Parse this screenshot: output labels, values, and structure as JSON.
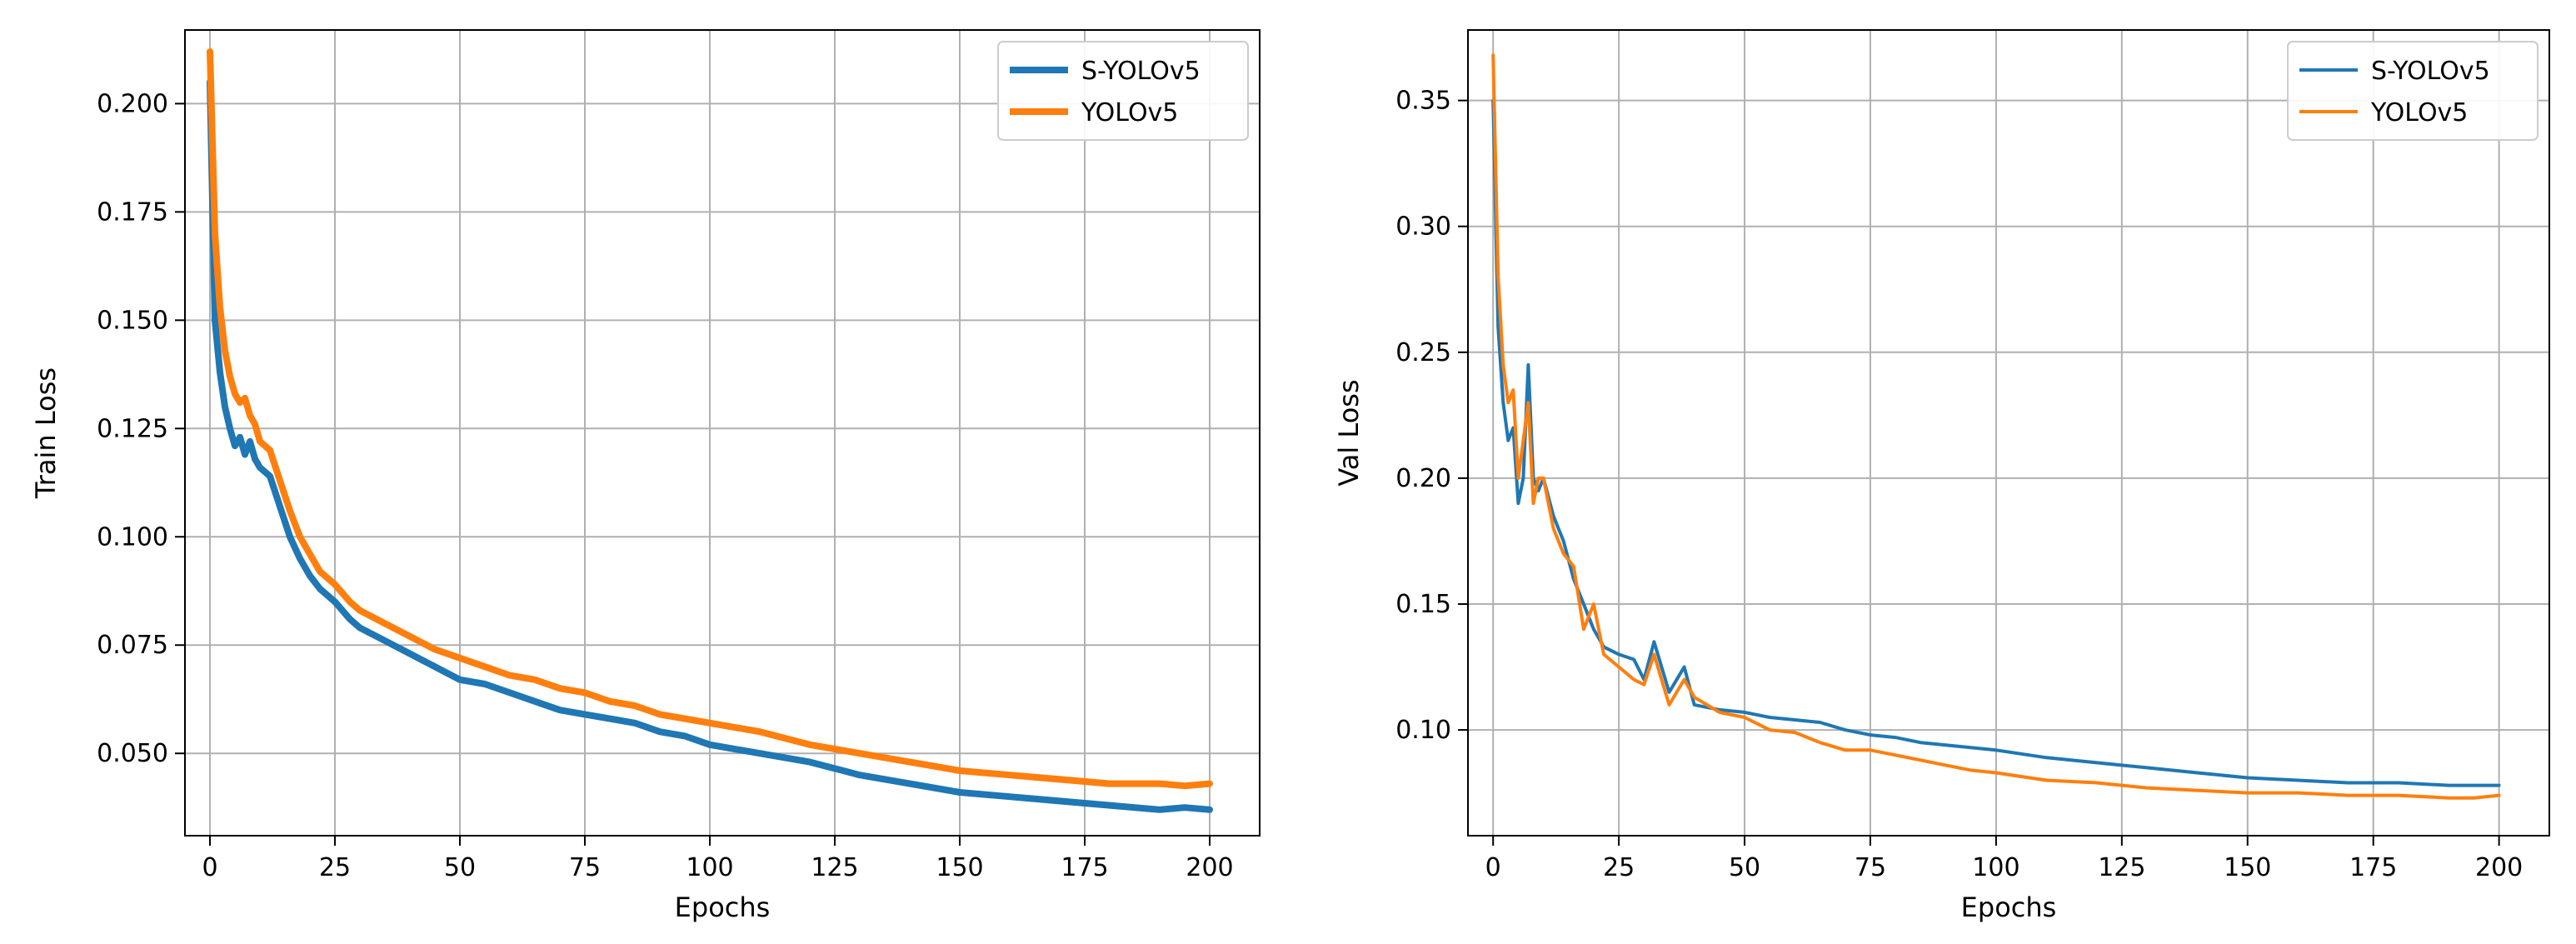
{
  "colors": {
    "s_yolov5": "#1f77b4",
    "yolov5": "#ff7f0e",
    "grid": "#b0b0b0",
    "axis": "#000000"
  },
  "chart_data": [
    {
      "type": "line",
      "title": "",
      "xlabel": "Epochs",
      "ylabel": "Train Loss",
      "xlim": [
        -5,
        210
      ],
      "ylim": [
        0.031,
        0.217
      ],
      "xticks": [
        0,
        25,
        50,
        75,
        100,
        125,
        150,
        175,
        200
      ],
      "xtick_labels": [
        "0",
        "25",
        "50",
        "75",
        "100",
        "125",
        "150",
        "175",
        "200"
      ],
      "yticks": [
        0.05,
        0.075,
        0.1,
        0.125,
        0.15,
        0.175,
        0.2
      ],
      "ytick_labels": [
        "0.050",
        "0.075",
        "0.100",
        "0.125",
        "0.150",
        "0.175",
        "0.200"
      ],
      "grid": true,
      "legend": "top-right",
      "series": [
        {
          "name": "S-YOLOv5",
          "color": "#1f77b4",
          "x": [
            0,
            1,
            2,
            3,
            4,
            5,
            6,
            7,
            8,
            9,
            10,
            12,
            14,
            16,
            18,
            20,
            22,
            25,
            28,
            30,
            35,
            40,
            45,
            50,
            55,
            60,
            65,
            70,
            75,
            80,
            85,
            90,
            95,
            100,
            110,
            120,
            130,
            140,
            150,
            160,
            170,
            180,
            190,
            195,
            200
          ],
          "y": [
            0.205,
            0.15,
            0.138,
            0.13,
            0.125,
            0.121,
            0.123,
            0.119,
            0.122,
            0.118,
            0.116,
            0.114,
            0.107,
            0.1,
            0.095,
            0.091,
            0.088,
            0.085,
            0.081,
            0.079,
            0.076,
            0.073,
            0.07,
            0.067,
            0.066,
            0.064,
            0.062,
            0.06,
            0.059,
            0.058,
            0.057,
            0.055,
            0.054,
            0.052,
            0.05,
            0.048,
            0.045,
            0.043,
            0.041,
            0.04,
            0.039,
            0.038,
            0.037,
            0.0375,
            0.037
          ]
        },
        {
          "name": "YOLOv5",
          "color": "#ff7f0e",
          "x": [
            0,
            1,
            2,
            3,
            4,
            5,
            6,
            7,
            8,
            9,
            10,
            12,
            14,
            16,
            18,
            20,
            22,
            25,
            28,
            30,
            35,
            40,
            45,
            50,
            55,
            60,
            65,
            70,
            75,
            80,
            85,
            90,
            95,
            100,
            110,
            120,
            130,
            140,
            150,
            160,
            170,
            180,
            190,
            195,
            200
          ],
          "y": [
            0.212,
            0.17,
            0.153,
            0.143,
            0.137,
            0.133,
            0.131,
            0.132,
            0.128,
            0.126,
            0.122,
            0.12,
            0.113,
            0.106,
            0.1,
            0.096,
            0.092,
            0.089,
            0.085,
            0.083,
            0.08,
            0.077,
            0.074,
            0.072,
            0.07,
            0.068,
            0.067,
            0.065,
            0.064,
            0.062,
            0.061,
            0.059,
            0.058,
            0.057,
            0.055,
            0.052,
            0.05,
            0.048,
            0.046,
            0.045,
            0.044,
            0.043,
            0.043,
            0.0425,
            0.043
          ]
        }
      ]
    },
    {
      "type": "line",
      "title": "",
      "xlabel": "Epochs",
      "ylabel": "Val Loss",
      "xlim": [
        -5,
        210
      ],
      "ylim": [
        0.058,
        0.378
      ],
      "xticks": [
        0,
        25,
        50,
        75,
        100,
        125,
        150,
        175,
        200
      ],
      "xtick_labels": [
        "0",
        "25",
        "50",
        "75",
        "100",
        "125",
        "150",
        "175",
        "200"
      ],
      "yticks": [
        0.1,
        0.15,
        0.2,
        0.25,
        0.3,
        0.35
      ],
      "ytick_labels": [
        "0.10",
        "0.15",
        "0.20",
        "0.25",
        "0.30",
        "0.35"
      ],
      "grid": true,
      "legend": "top-right",
      "series": [
        {
          "name": "S-YOLOv5",
          "color": "#1f77b4",
          "x": [
            0,
            1,
            2,
            3,
            4,
            5,
            6,
            7,
            8,
            9,
            10,
            12,
            14,
            16,
            18,
            20,
            22,
            25,
            28,
            30,
            32,
            35,
            38,
            40,
            45,
            50,
            55,
            60,
            65,
            70,
            75,
            80,
            85,
            90,
            95,
            100,
            110,
            120,
            130,
            140,
            150,
            160,
            170,
            180,
            190,
            195,
            200
          ],
          "y": [
            0.35,
            0.26,
            0.23,
            0.215,
            0.22,
            0.19,
            0.2,
            0.245,
            0.2,
            0.195,
            0.2,
            0.185,
            0.175,
            0.16,
            0.15,
            0.14,
            0.133,
            0.13,
            0.128,
            0.12,
            0.135,
            0.115,
            0.125,
            0.11,
            0.108,
            0.107,
            0.105,
            0.104,
            0.103,
            0.1,
            0.098,
            0.097,
            0.095,
            0.094,
            0.093,
            0.092,
            0.089,
            0.087,
            0.085,
            0.083,
            0.081,
            0.08,
            0.079,
            0.079,
            0.078,
            0.078,
            0.078
          ]
        },
        {
          "name": "YOLOv5",
          "color": "#ff7f0e",
          "x": [
            0,
            1,
            2,
            3,
            4,
            5,
            6,
            7,
            8,
            9,
            10,
            12,
            14,
            16,
            18,
            20,
            22,
            25,
            28,
            30,
            32,
            35,
            38,
            40,
            45,
            50,
            55,
            60,
            65,
            70,
            75,
            80,
            85,
            90,
            95,
            100,
            110,
            120,
            130,
            140,
            150,
            160,
            170,
            180,
            190,
            195,
            200
          ],
          "y": [
            0.368,
            0.28,
            0.245,
            0.23,
            0.235,
            0.2,
            0.215,
            0.23,
            0.19,
            0.2,
            0.2,
            0.18,
            0.17,
            0.165,
            0.14,
            0.15,
            0.13,
            0.125,
            0.12,
            0.118,
            0.13,
            0.11,
            0.12,
            0.113,
            0.107,
            0.105,
            0.1,
            0.099,
            0.095,
            0.092,
            0.092,
            0.09,
            0.088,
            0.086,
            0.084,
            0.083,
            0.08,
            0.079,
            0.077,
            0.076,
            0.075,
            0.075,
            0.074,
            0.074,
            0.073,
            0.073,
            0.074
          ]
        }
      ]
    }
  ]
}
